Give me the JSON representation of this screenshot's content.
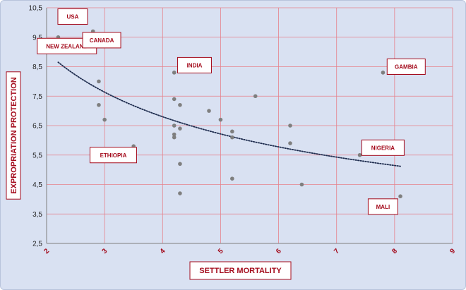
{
  "chart_data": {
    "type": "scatter",
    "title": "",
    "xlabel": "Settler Mortality",
    "ylabel": "Expropriation protection",
    "xlim": [
      2,
      9
    ],
    "ylim": [
      2.5,
      10.5
    ],
    "x_ticks": [
      "2",
      "3",
      "4",
      "5",
      "6",
      "7",
      "8",
      "9"
    ],
    "y_ticks": [
      "2,5",
      "3,5",
      "4,5",
      "5,5",
      "6,5",
      "7,5",
      "8,5",
      "9,5",
      "10,5"
    ],
    "grid": true,
    "legend": "none",
    "points": [
      {
        "x": 2.2,
        "y": 9.5
      },
      {
        "x": 2.4,
        "y": 10.0
      },
      {
        "x": 2.8,
        "y": 9.7
      },
      {
        "x": 2.9,
        "y": 8.0
      },
      {
        "x": 2.9,
        "y": 7.2
      },
      {
        "x": 3.0,
        "y": 6.7
      },
      {
        "x": 3.5,
        "y": 5.8
      },
      {
        "x": 4.2,
        "y": 8.3
      },
      {
        "x": 4.2,
        "y": 7.4
      },
      {
        "x": 4.3,
        "y": 7.2
      },
      {
        "x": 4.2,
        "y": 6.5
      },
      {
        "x": 4.2,
        "y": 6.2
      },
      {
        "x": 4.2,
        "y": 6.1
      },
      {
        "x": 4.3,
        "y": 6.4
      },
      {
        "x": 4.3,
        "y": 5.2
      },
      {
        "x": 4.3,
        "y": 4.2
      },
      {
        "x": 4.8,
        "y": 7.0
      },
      {
        "x": 5.0,
        "y": 6.7
      },
      {
        "x": 5.2,
        "y": 6.3
      },
      {
        "x": 5.2,
        "y": 6.1
      },
      {
        "x": 5.2,
        "y": 4.7
      },
      {
        "x": 5.6,
        "y": 7.5
      },
      {
        "x": 6.2,
        "y": 6.5
      },
      {
        "x": 6.2,
        "y": 5.9
      },
      {
        "x": 6.4,
        "y": 4.5
      },
      {
        "x": 7.4,
        "y": 5.5
      },
      {
        "x": 7.8,
        "y": 8.3
      },
      {
        "x": 8.1,
        "y": 4.1
      }
    ],
    "trendline": {
      "type": "power",
      "x_start": 2.2,
      "x_end": 8.1,
      "y_start": 8.65,
      "y_end": 5.12,
      "style": "dotted",
      "color": "#1f2d4f"
    },
    "annotations": [
      {
        "text": "USA",
        "x": 2.45,
        "y": 10.2
      },
      {
        "text": "New Zealand",
        "x": 2.35,
        "y": 9.2
      },
      {
        "text": "Canada",
        "x": 2.95,
        "y": 9.4
      },
      {
        "text": "India",
        "x": 4.55,
        "y": 8.55
      },
      {
        "text": "Gambia",
        "x": 8.2,
        "y": 8.5
      },
      {
        "text": "Ethiopia",
        "x": 3.15,
        "y": 5.5
      },
      {
        "text": "Nigeria",
        "x": 7.8,
        "y": 5.75
      },
      {
        "text": "Mali",
        "x": 7.8,
        "y": 3.75
      }
    ],
    "colors": {
      "background": "#d9e1f2",
      "grid": "#e6818a",
      "points": "#7f7f7f",
      "accent": "#a40b1c",
      "trendline": "#1f2d4f"
    }
  }
}
